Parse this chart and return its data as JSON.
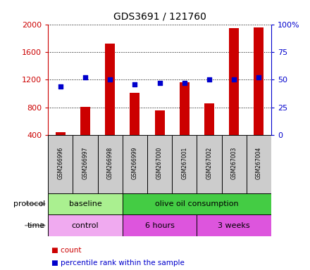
{
  "title": "GDS3691 / 121760",
  "samples": [
    "GSM266996",
    "GSM266997",
    "GSM266998",
    "GSM266999",
    "GSM267000",
    "GSM267001",
    "GSM267002",
    "GSM267003",
    "GSM267004"
  ],
  "count_values": [
    440,
    810,
    1720,
    1010,
    760,
    1165,
    855,
    1940,
    1950
  ],
  "percentile_values": [
    44,
    52,
    50,
    46,
    47,
    47,
    50,
    50,
    52
  ],
  "left_ylim": [
    400,
    2000
  ],
  "right_ylim": [
    0,
    100
  ],
  "left_yticks": [
    400,
    800,
    1200,
    1600,
    2000
  ],
  "right_yticks": [
    0,
    25,
    50,
    75,
    100
  ],
  "right_yticklabels": [
    "0",
    "25",
    "50",
    "75",
    "100%"
  ],
  "bar_color": "#cc0000",
  "dot_color": "#0000cc",
  "protocol_groups": [
    {
      "label": "baseline",
      "start": 0,
      "end": 3,
      "color": "#aaf090"
    },
    {
      "label": "olive oil consumption",
      "start": 3,
      "end": 9,
      "color": "#44cc44"
    }
  ],
  "time_groups": [
    {
      "label": "control",
      "start": 0,
      "end": 3,
      "color": "#f0aaf0"
    },
    {
      "label": "6 hours",
      "start": 3,
      "end": 6,
      "color": "#dd55dd"
    },
    {
      "label": "3 weeks",
      "start": 6,
      "end": 9,
      "color": "#dd55dd"
    }
  ],
  "left_axis_color": "#cc0000",
  "right_axis_color": "#0000cc",
  "sample_box_color": "#cccccc",
  "legend_count_label": "count",
  "legend_pct_label": "percentile rank within the sample"
}
